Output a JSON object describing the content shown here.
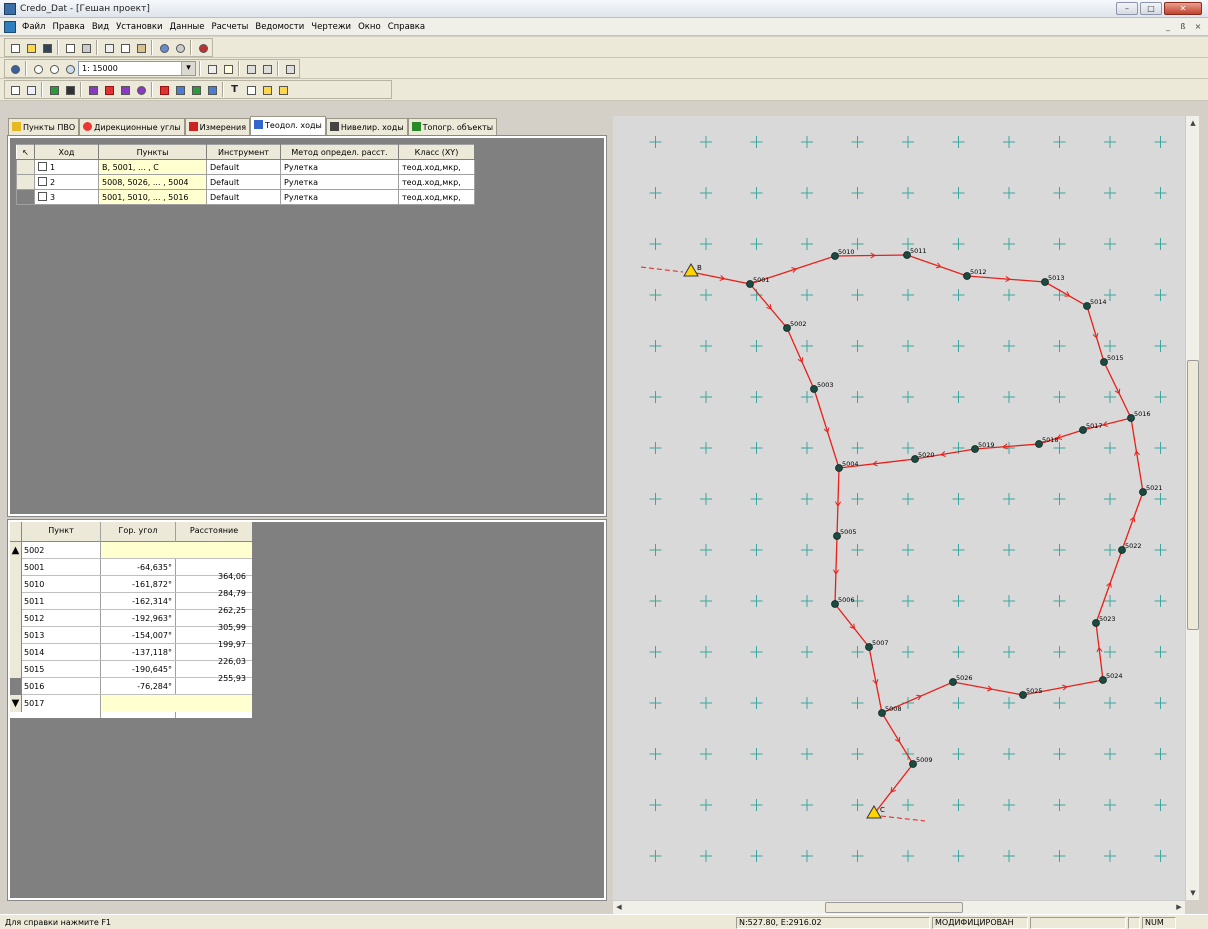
{
  "window": {
    "title": "Credo_Dat - [Гешан проект]",
    "buttons": [
      "–",
      "□",
      "✕"
    ]
  },
  "menu": {
    "items": [
      "Файл",
      "Правка",
      "Вид",
      "Установки",
      "Данные",
      "Расчеты",
      "Ведомости",
      "Чертежи",
      "Окно",
      "Справка"
    ],
    "mdi_buttons": [
      "_",
      "ß",
      "×"
    ]
  },
  "toolbar": {
    "scale": "1: 15000",
    "text_tool": "T"
  },
  "tabs": [
    "Пункты ПВО",
    "Дирекционные углы",
    "Измерения",
    "Теодол. ходы",
    "Нивелир. ходы",
    "Топогр. объекты"
  ],
  "traverse_table": {
    "headers": [
      "Ход",
      "Пункты",
      "Инструмент",
      "Метод определ. расст.",
      "Класс (XY)"
    ],
    "rows": [
      {
        "id": "1",
        "points": "B, 5001, ... , C",
        "instrument": "Default",
        "method": "Рулетка",
        "class": "теод.ход,мкр,"
      },
      {
        "id": "2",
        "points": "5008, 5026, ... , 5004",
        "instrument": "Default",
        "method": "Рулетка",
        "class": "теод.ход,мкр,"
      },
      {
        "id": "3",
        "points": "5001, 5010, ... , 5016",
        "instrument": "Default",
        "method": "Рулетка",
        "class": "теод.ход,мкр,"
      }
    ]
  },
  "angles_table": {
    "headers": [
      "Пункт",
      "Гор. угол",
      "Расстояние"
    ],
    "rows": [
      {
        "point": "5002",
        "angle": ""
      },
      {
        "point": "5001",
        "angle": "-64,635°"
      },
      {
        "point": "5010",
        "angle": "-161,872°"
      },
      {
        "point": "5011",
        "angle": "-162,314°"
      },
      {
        "point": "5012",
        "angle": "-192,963°"
      },
      {
        "point": "5013",
        "angle": "-154,007°"
      },
      {
        "point": "5014",
        "angle": "-137,118°"
      },
      {
        "point": "5015",
        "angle": "-190,645°"
      },
      {
        "point": "5016",
        "angle": "-76,284°"
      },
      {
        "point": "5017",
        "angle": ""
      }
    ],
    "distances": [
      "364,06",
      "284,79",
      "262,25",
      "305,99",
      "199,97",
      "226,03",
      "255,93"
    ]
  },
  "map": {
    "line_color": "#e8201a",
    "point_color": "#1b4a40",
    "control_color": "#ffd400",
    "points": [
      {
        "label": "B",
        "control": true
      },
      {
        "label": "5001"
      },
      {
        "label": "5002"
      },
      {
        "label": "5003"
      },
      {
        "label": "5004"
      },
      {
        "label": "5005"
      },
      {
        "label": "5006"
      },
      {
        "label": "5007"
      },
      {
        "label": "5008"
      },
      {
        "label": "5009"
      },
      {
        "label": "C",
        "control": true
      },
      {
        "label": "5010"
      },
      {
        "label": "5011"
      },
      {
        "label": "5012"
      },
      {
        "label": "5013"
      },
      {
        "label": "5014"
      },
      {
        "label": "5015"
      },
      {
        "label": "5016"
      },
      {
        "label": "5017"
      },
      {
        "label": "5018"
      },
      {
        "label": "5019"
      },
      {
        "label": "5020"
      },
      {
        "label": "5021"
      },
      {
        "label": "5022"
      },
      {
        "label": "5023"
      },
      {
        "label": "5024"
      },
      {
        "label": "5025"
      },
      {
        "label": "5026"
      }
    ]
  },
  "status": {
    "help": "Для справки нажмите F1",
    "coords": "N:527.80, E:2916.02",
    "state": "МОДИФИЦИРОВАН",
    "num": "NUM"
  }
}
